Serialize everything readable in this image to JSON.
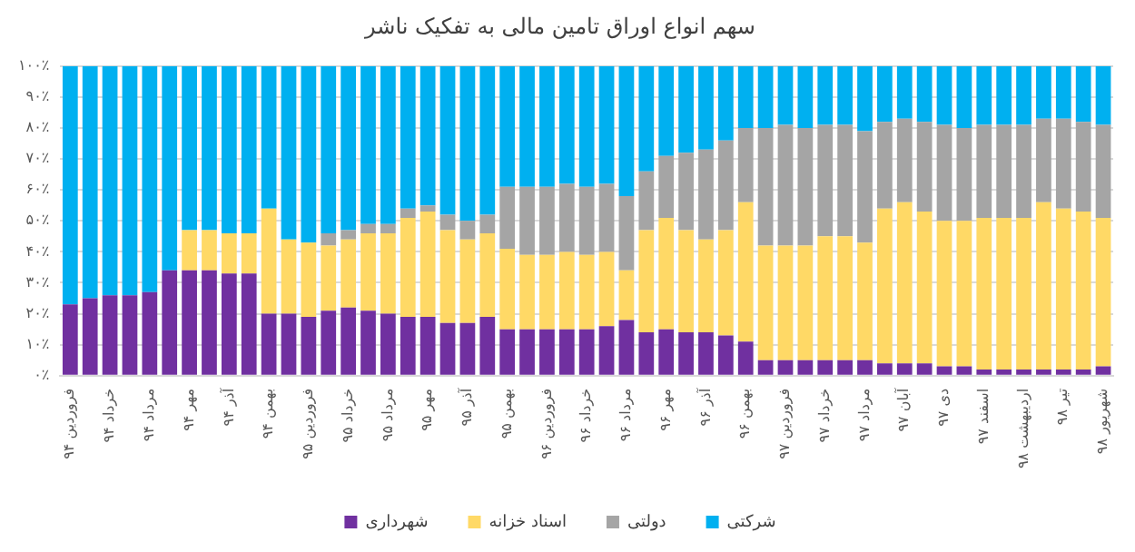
{
  "chart_data": {
    "type": "bar",
    "title": "سهم انواع اوراق تامین مالی به تفکیک ناشر",
    "stacked": true,
    "grid": "y",
    "legend": "bottom",
    "categories": [
      "فروردین ۹۴",
      null,
      "خرداد ۹۴",
      null,
      "مرداد ۹۴",
      null,
      "مهر ۹۴",
      null,
      "آذر ۹۴",
      null,
      "بهمن ۹۴",
      null,
      "فروردین ۹۵",
      null,
      "خرداد ۹۵",
      null,
      "مرداد ۹۵",
      null,
      "مهر ۹۵",
      null,
      "آذر ۹۵",
      null,
      "بهمن ۹۵",
      null,
      "فروردین ۹۶",
      null,
      "خرداد ۹۶",
      null,
      "مرداد ۹۶",
      null,
      "مهر ۹۶",
      null,
      "آذر ۹۶",
      null,
      "بهمن ۹۶",
      null,
      "فروردین ۹۷",
      null,
      "خرداد ۹۷",
      null,
      "مرداد ۹۷",
      null,
      "آبان ۹۷",
      null,
      "دی ۹۷",
      null,
      "اسفند ۹۷",
      null,
      "اردیبهشت ۹۸",
      null,
      "تیر ۹۸",
      null,
      "شهریور ۹۸"
    ],
    "ylim": [
      0,
      100
    ],
    "yticks": [
      {
        "value": 0,
        "label": "۰٪"
      },
      {
        "value": 10,
        "label": "۱۰٪"
      },
      {
        "value": 20,
        "label": "۲۰٪"
      },
      {
        "value": 30,
        "label": "۳۰٪"
      },
      {
        "value": 40,
        "label": "۴۰٪"
      },
      {
        "value": 50,
        "label": "۵۰٪"
      },
      {
        "value": 60,
        "label": "۶۰٪"
      },
      {
        "value": 70,
        "label": "۷۰٪"
      },
      {
        "value": 80,
        "label": "۸۰٪"
      },
      {
        "value": 90,
        "label": "۹۰٪"
      },
      {
        "value": 100,
        "label": "۱۰۰٪"
      }
    ],
    "series": [
      {
        "name": "شهرداری",
        "color": "#7030a0",
        "values": [
          23,
          25,
          26,
          26,
          27,
          34,
          34,
          34,
          33,
          33,
          20,
          20,
          19,
          21,
          22,
          21,
          20,
          19,
          19,
          17,
          17,
          19,
          15,
          15,
          15,
          15,
          15,
          16,
          18,
          14,
          15,
          14,
          14,
          13,
          11,
          5,
          5,
          5,
          5,
          5,
          5,
          4,
          4,
          4,
          3,
          3,
          2,
          2,
          2,
          2,
          2,
          2,
          3
        ]
      },
      {
        "name": "اسناد خزانه",
        "color": "#ffd966",
        "values": [
          0,
          0,
          0,
          0,
          0,
          0,
          13,
          13,
          13,
          13,
          34,
          24,
          24,
          21,
          22,
          25,
          26,
          32,
          34,
          30,
          27,
          27,
          26,
          24,
          24,
          25,
          24,
          24,
          16,
          33,
          36,
          33,
          30,
          34,
          45,
          37,
          37,
          37,
          40,
          40,
          38,
          50,
          52,
          49,
          47,
          47,
          49,
          49,
          49,
          54,
          52,
          51,
          48
        ]
      },
      {
        "name": "دولتی",
        "color": "#a5a5a5",
        "values": [
          0,
          0,
          0,
          0,
          0,
          0,
          0,
          0,
          0,
          0,
          0,
          0,
          0,
          4,
          3,
          3,
          3,
          3,
          2,
          5,
          6,
          6,
          20,
          22,
          22,
          22,
          22,
          22,
          24,
          19,
          20,
          25,
          29,
          29,
          24,
          38,
          39,
          38,
          36,
          36,
          36,
          28,
          27,
          29,
          31,
          30,
          30,
          30,
          30,
          27,
          29,
          29,
          30
        ]
      },
      {
        "name": "شرکتی",
        "color": "#00b0f0",
        "values": [
          77,
          75,
          74,
          74,
          73,
          66,
          53,
          53,
          54,
          54,
          46,
          56,
          57,
          54,
          53,
          51,
          51,
          46,
          45,
          48,
          50,
          48,
          39,
          39,
          39,
          38,
          39,
          38,
          42,
          34,
          29,
          28,
          27,
          24,
          20,
          20,
          19,
          20,
          19,
          19,
          21,
          18,
          17,
          18,
          19,
          20,
          19,
          19,
          19,
          17,
          17,
          18,
          19
        ]
      }
    ]
  }
}
